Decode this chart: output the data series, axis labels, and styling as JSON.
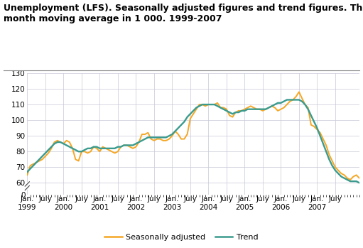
{
  "title_line1": "Unemployment (LFS). Seasonally adjusted figures and trend figures. Three-",
  "title_line2": "month moving average in 1 000. 1999-2007",
  "seasonally_adjusted": [
    65,
    71,
    72,
    73,
    74,
    75,
    77,
    79,
    82,
    86,
    87,
    86,
    85,
    87,
    86,
    82,
    75,
    74,
    80,
    80,
    79,
    80,
    83,
    82,
    80,
    83,
    82,
    81,
    80,
    79,
    80,
    83,
    84,
    84,
    83,
    82,
    83,
    86,
    91,
    91,
    92,
    88,
    87,
    88,
    88,
    87,
    87,
    88,
    90,
    93,
    91,
    88,
    88,
    91,
    101,
    104,
    107,
    110,
    110,
    109,
    110,
    110,
    110,
    111,
    108,
    108,
    107,
    103,
    102,
    105,
    106,
    106,
    107,
    108,
    109,
    108,
    107,
    107,
    106,
    107,
    108,
    109,
    108,
    106,
    107,
    108,
    110,
    112,
    113,
    115,
    118,
    114,
    110,
    108,
    97,
    96,
    94,
    92,
    88,
    84,
    78,
    74,
    70,
    68,
    66,
    65,
    63,
    62,
    64,
    65,
    63
  ],
  "trend": [
    67,
    69,
    71,
    73,
    75,
    77,
    79,
    81,
    83,
    85,
    86,
    86,
    85,
    84,
    83,
    82,
    81,
    80,
    80,
    81,
    82,
    82,
    83,
    83,
    82,
    82,
    82,
    82,
    82,
    82,
    83,
    83,
    84,
    84,
    84,
    84,
    85,
    86,
    87,
    88,
    89,
    89,
    89,
    89,
    89,
    89,
    89,
    90,
    91,
    93,
    95,
    97,
    99,
    102,
    104,
    106,
    108,
    109,
    110,
    110,
    110,
    110,
    110,
    109,
    108,
    107,
    106,
    105,
    104,
    105,
    105,
    106,
    106,
    107,
    107,
    107,
    107,
    107,
    107,
    107,
    108,
    109,
    110,
    111,
    111,
    112,
    113,
    113,
    113,
    113,
    113,
    112,
    110,
    107,
    103,
    99,
    95,
    90,
    85,
    80,
    75,
    71,
    68,
    66,
    64,
    63,
    62,
    61,
    61,
    61,
    60
  ],
  "x_tick_labels_top": [
    "Jan.",
    "July",
    "Jan.",
    "July",
    "Jan.",
    "July",
    "Jan.",
    "July",
    "Jan.",
    "July",
    "Jan.",
    "July",
    "Jan.",
    "July",
    "Jan.",
    "July",
    "Jan.",
    "July"
  ],
  "x_tick_labels_bot": [
    "1999",
    "",
    "2000",
    "",
    "2001",
    "",
    "2002",
    "",
    "2003",
    "",
    "2004",
    "",
    "2005",
    "",
    "2006",
    "",
    "2007",
    ""
  ],
  "x_tick_positions": [
    0,
    6,
    12,
    18,
    24,
    30,
    36,
    42,
    48,
    54,
    60,
    66,
    72,
    78,
    84,
    90,
    96,
    102
  ],
  "ylim_main": [
    58,
    130
  ],
  "ylim_break": [
    0,
    5
  ],
  "yticks_main": [
    60,
    70,
    80,
    90,
    100,
    110,
    120,
    130
  ],
  "ytick_zero": [
    0
  ],
  "color_seasonal": "#F5A623",
  "color_trend": "#3A9B8E",
  "legend_seasonal": "Seasonally adjusted",
  "legend_trend": "Trend",
  "bg_color": "#FFFFFF",
  "grid_color": "#C8C8D8",
  "linewidth_seasonal": 1.4,
  "linewidth_trend": 1.7,
  "title_fontsize": 9,
  "tick_fontsize": 7.5
}
